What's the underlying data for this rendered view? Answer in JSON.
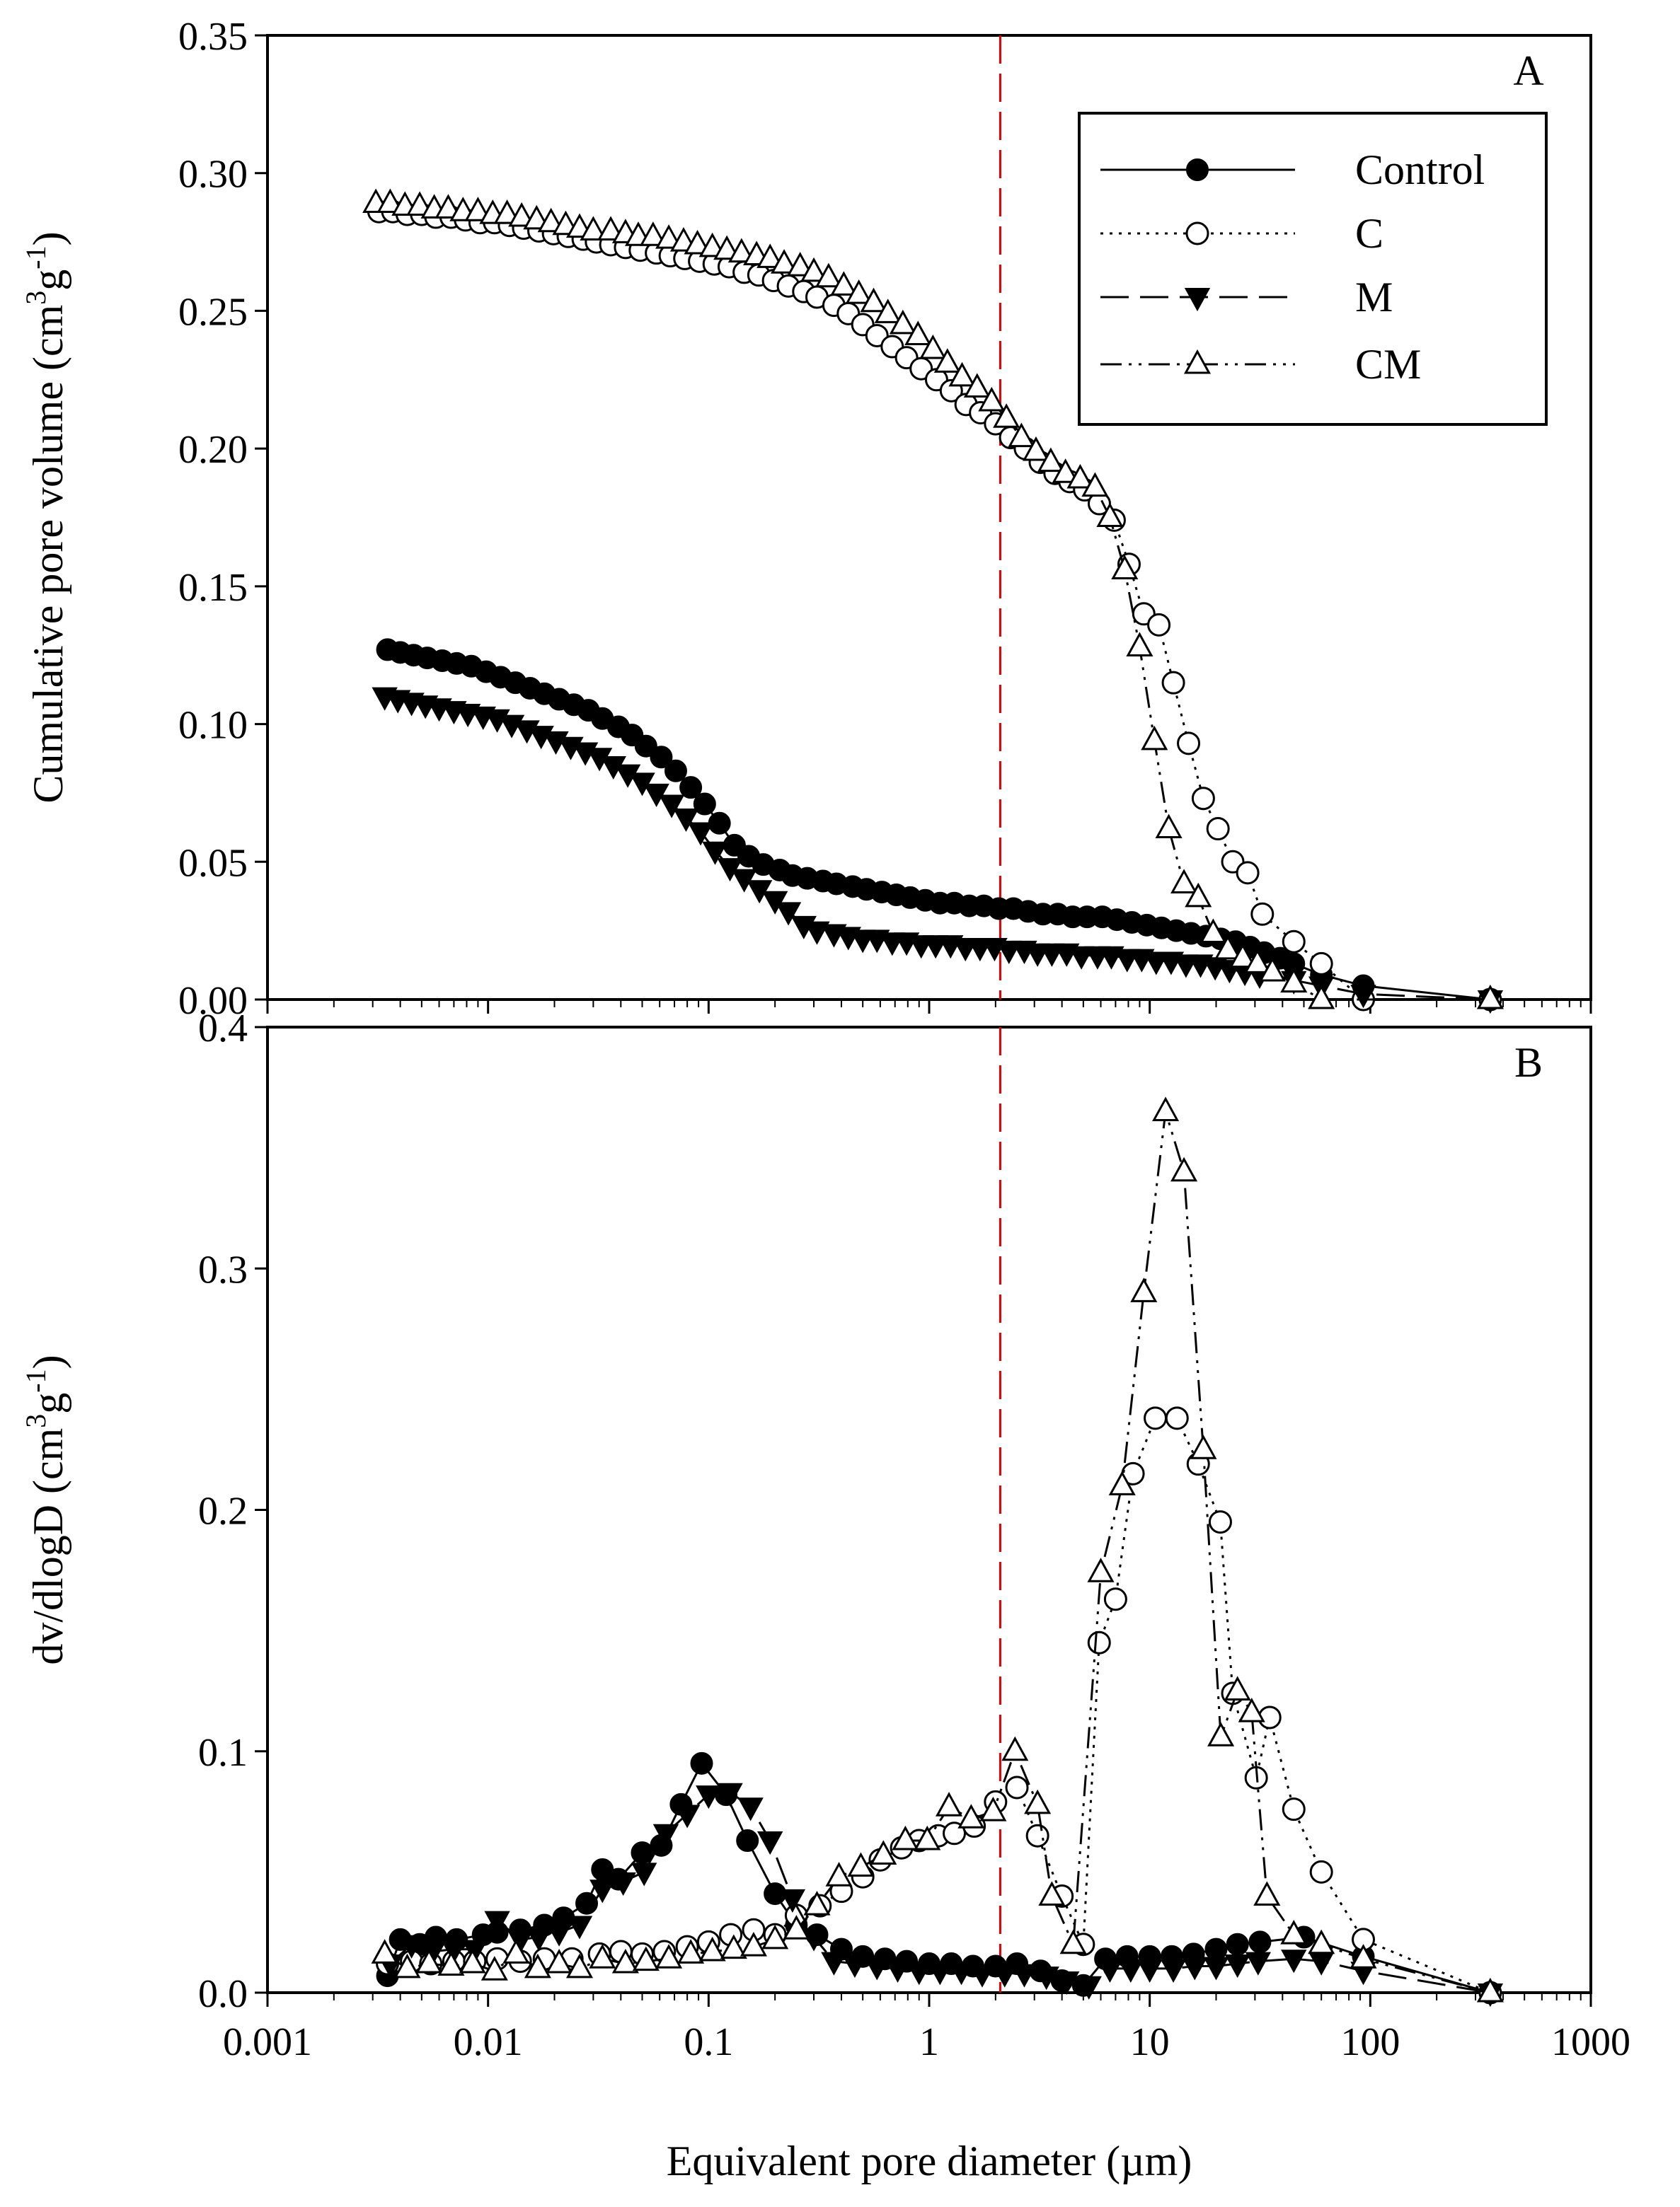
{
  "colors": {
    "axis": "#000000",
    "refline": "#e00000",
    "open_fill": "#ffffff",
    "filled": "#000000"
  },
  "chart_data": [
    {
      "type": "line",
      "panel": "A",
      "ylabel_main": "Cumulative pore volume (cm",
      "ylabel_sup1": "3",
      "ylabel_mid": "g",
      "ylabel_sup2": "-1",
      "ylabel_end": ")",
      "xlabel": "Equivalent pore diameter  (µm)",
      "xscale": "log",
      "xlim": [
        0.001,
        1000
      ],
      "ylim": [
        0,
        0.35
      ],
      "x_ticks": [
        "0.001",
        "0.01",
        "0.1",
        "1",
        "10",
        "100",
        "1000"
      ],
      "y_ticks": [
        "0.00",
        "0.05",
        "0.10",
        "0.15",
        "0.20",
        "0.25",
        "0.30",
        "0.35"
      ],
      "reference_line_x": 2.1,
      "legend": [
        "Control",
        "C",
        "M",
        "CM"
      ],
      "series": [
        {
          "name": "Control",
          "marker": "circle-filled",
          "line": "solid",
          "x": [
            0.0035,
            0.004,
            0.0046,
            0.0053,
            0.0062,
            0.0072,
            0.0084,
            0.0098,
            0.0114,
            0.0133,
            0.0155,
            0.018,
            0.021,
            0.0245,
            0.0285,
            0.033,
            0.039,
            0.045,
            0.052,
            0.061,
            0.071,
            0.083,
            0.096,
            0.112,
            0.131,
            0.152,
            0.177,
            0.21,
            0.24,
            0.28,
            0.33,
            0.38,
            0.45,
            0.52,
            0.61,
            0.71,
            0.82,
            0.96,
            1.12,
            1.3,
            1.52,
            1.77,
            2.07,
            2.41,
            2.81,
            3.28,
            3.83,
            4.47,
            5.2,
            6.1,
            7.1,
            8.3,
            9.7,
            11.3,
            13.2,
            15.4,
            18.0,
            21.0,
            24.5,
            28.5,
            33,
            39,
            45,
            60,
            93,
            350
          ],
          "y": [
            0.127,
            0.126,
            0.125,
            0.124,
            0.123,
            0.122,
            0.121,
            0.119,
            0.117,
            0.115,
            0.113,
            0.111,
            0.109,
            0.107,
            0.105,
            0.102,
            0.099,
            0.096,
            0.092,
            0.088,
            0.083,
            0.077,
            0.071,
            0.064,
            0.056,
            0.052,
            0.049,
            0.047,
            0.045,
            0.044,
            0.043,
            0.042,
            0.041,
            0.04,
            0.039,
            0.038,
            0.037,
            0.036,
            0.035,
            0.035,
            0.034,
            0.034,
            0.033,
            0.033,
            0.032,
            0.031,
            0.031,
            0.03,
            0.03,
            0.03,
            0.029,
            0.028,
            0.027,
            0.026,
            0.025,
            0.024,
            0.023,
            0.022,
            0.021,
            0.019,
            0.017,
            0.015,
            0.013,
            0.009,
            0.005,
            0.0
          ]
        },
        {
          "name": "C",
          "marker": "circle-open",
          "line": "dotted",
          "x": [
            0.0032,
            0.0037,
            0.0043,
            0.005,
            0.0058,
            0.0068,
            0.0079,
            0.0092,
            0.0107,
            0.0125,
            0.0145,
            0.017,
            0.0198,
            0.0231,
            0.027,
            0.031,
            0.036,
            0.042,
            0.049,
            0.058,
            0.067,
            0.078,
            0.091,
            0.106,
            0.124,
            0.145,
            0.169,
            0.197,
            0.23,
            0.27,
            0.31,
            0.37,
            0.43,
            0.5,
            0.58,
            0.68,
            0.79,
            0.92,
            1.08,
            1.26,
            1.47,
            1.71,
            2.0,
            2.34,
            2.73,
            3.19,
            3.72,
            4.34,
            5.07,
            5.91,
            6.9,
            8.06,
            9.4,
            11.0,
            12.8,
            15.0,
            17.5,
            20.4,
            23.8,
            27.8,
            32.4,
            45,
            60,
            93,
            350
          ],
          "y": [
            0.286,
            0.286,
            0.285,
            0.285,
            0.284,
            0.284,
            0.283,
            0.282,
            0.282,
            0.281,
            0.28,
            0.279,
            0.278,
            0.277,
            0.276,
            0.275,
            0.274,
            0.273,
            0.272,
            0.271,
            0.27,
            0.269,
            0.268,
            0.267,
            0.266,
            0.264,
            0.263,
            0.261,
            0.259,
            0.257,
            0.255,
            0.252,
            0.249,
            0.245,
            0.241,
            0.237,
            0.233,
            0.229,
            0.225,
            0.221,
            0.216,
            0.213,
            0.209,
            0.204,
            0.2,
            0.195,
            0.191,
            0.188,
            0.185,
            0.18,
            0.174,
            0.158,
            0.14,
            0.136,
            0.115,
            0.093,
            0.073,
            0.062,
            0.05,
            0.046,
            0.031,
            0.021,
            0.013,
            0.0,
            0.0
          ]
        },
        {
          "name": "M",
          "marker": "triangle-down-filled",
          "line": "dashed",
          "x": [
            0.0034,
            0.0039,
            0.0045,
            0.0052,
            0.006,
            0.007,
            0.0081,
            0.0095,
            0.011,
            0.0128,
            0.015,
            0.0174,
            0.0203,
            0.0237,
            0.0276,
            0.032,
            0.037,
            0.043,
            0.05,
            0.058,
            0.068,
            0.079,
            0.092,
            0.107,
            0.125,
            0.145,
            0.17,
            0.2,
            0.23,
            0.27,
            0.31,
            0.37,
            0.43,
            0.5,
            0.58,
            0.68,
            0.79,
            0.92,
            1.07,
            1.25,
            1.46,
            1.7,
            1.98,
            2.3,
            2.7,
            3.1,
            3.6,
            4.2,
            4.9,
            5.8,
            6.7,
            7.9,
            9.2,
            10.7,
            12.5,
            14.6,
            17,
            19.8,
            23,
            27,
            31.5,
            45,
            60,
            93,
            350
          ],
          "y": [
            0.11,
            0.109,
            0.108,
            0.107,
            0.106,
            0.105,
            0.104,
            0.103,
            0.102,
            0.1,
            0.098,
            0.096,
            0.094,
            0.092,
            0.09,
            0.088,
            0.085,
            0.082,
            0.079,
            0.075,
            0.071,
            0.066,
            0.061,
            0.054,
            0.048,
            0.044,
            0.04,
            0.036,
            0.032,
            0.027,
            0.025,
            0.024,
            0.023,
            0.022,
            0.022,
            0.021,
            0.021,
            0.02,
            0.02,
            0.02,
            0.019,
            0.019,
            0.019,
            0.018,
            0.018,
            0.017,
            0.017,
            0.017,
            0.016,
            0.016,
            0.016,
            0.015,
            0.015,
            0.014,
            0.014,
            0.013,
            0.013,
            0.012,
            0.011,
            0.01,
            0.009,
            0.007,
            0.005,
            0.002,
            0.0
          ]
        },
        {
          "name": "CM",
          "marker": "triangle-up-open",
          "line": "dashdotdot",
          "x": [
            0.0031,
            0.0036,
            0.0042,
            0.0049,
            0.0057,
            0.0066,
            0.0077,
            0.009,
            0.0105,
            0.0122,
            0.0142,
            0.0166,
            0.0193,
            0.0225,
            0.026,
            0.03,
            0.036,
            0.042,
            0.048,
            0.056,
            0.066,
            0.077,
            0.089,
            0.104,
            0.121,
            0.141,
            0.165,
            0.19,
            0.22,
            0.26,
            0.3,
            0.35,
            0.41,
            0.48,
            0.56,
            0.65,
            0.76,
            0.89,
            1.04,
            1.21,
            1.41,
            1.65,
            1.92,
            2.24,
            2.62,
            3.05,
            3.56,
            4.15,
            4.84,
            5.65,
            6.6,
            7.7,
            9.0,
            10.5,
            12.2,
            14.3,
            16.6,
            19.4,
            22.6,
            26.4,
            30.8,
            36,
            45,
            60,
            350
          ],
          "y": [
            0.289,
            0.289,
            0.288,
            0.288,
            0.287,
            0.287,
            0.286,
            0.286,
            0.285,
            0.285,
            0.284,
            0.283,
            0.282,
            0.281,
            0.28,
            0.279,
            0.279,
            0.278,
            0.277,
            0.277,
            0.276,
            0.275,
            0.274,
            0.273,
            0.272,
            0.271,
            0.27,
            0.269,
            0.267,
            0.266,
            0.264,
            0.262,
            0.259,
            0.256,
            0.253,
            0.249,
            0.245,
            0.241,
            0.236,
            0.231,
            0.226,
            0.222,
            0.217,
            0.211,
            0.204,
            0.199,
            0.195,
            0.191,
            0.189,
            0.186,
            0.175,
            0.156,
            0.128,
            0.094,
            0.062,
            0.042,
            0.037,
            0.024,
            0.018,
            0.015,
            0.013,
            0.01,
            0.006,
            0.0,
            0.0
          ]
        }
      ]
    },
    {
      "type": "line",
      "panel": "B",
      "ylabel_main": "dv/dlogD (cm",
      "ylabel_sup1": "3",
      "ylabel_mid": "g",
      "ylabel_sup2": "-1",
      "ylabel_end": ")",
      "xscale": "log",
      "xlim": [
        0.001,
        1000
      ],
      "ylim": [
        0,
        0.4
      ],
      "y_ticks": [
        "0.0",
        "0.1",
        "0.2",
        "0.3",
        "0.4"
      ],
      "reference_line_x": 2.1,
      "series": [
        {
          "name": "Control",
          "marker": "circle-filled",
          "line": "solid",
          "x": [
            0.0035,
            0.004,
            0.0049,
            0.0058,
            0.0072,
            0.0095,
            0.011,
            0.014,
            0.018,
            0.022,
            0.028,
            0.033,
            0.039,
            0.05,
            0.061,
            0.075,
            0.093,
            0.12,
            0.15,
            0.2,
            0.25,
            0.31,
            0.4,
            0.5,
            0.63,
            0.79,
            1.0,
            1.26,
            1.58,
            2.0,
            2.5,
            3.2,
            4.0,
            5.0,
            6.3,
            7.9,
            10,
            12.6,
            15.8,
            20,
            25,
            31.6,
            50,
            93,
            350
          ],
          "y": [
            0.007,
            0.022,
            0.02,
            0.023,
            0.022,
            0.024,
            0.025,
            0.026,
            0.028,
            0.031,
            0.037,
            0.051,
            0.047,
            0.058,
            0.061,
            0.078,
            0.095,
            0.082,
            0.063,
            0.041,
            0.028,
            0.024,
            0.018,
            0.015,
            0.014,
            0.013,
            0.012,
            0.012,
            0.011,
            0.011,
            0.012,
            0.009,
            0.005,
            0.003,
            0.014,
            0.015,
            0.015,
            0.015,
            0.016,
            0.018,
            0.02,
            0.021,
            0.023,
            0.015,
            0.0
          ]
        },
        {
          "name": "C",
          "marker": "circle-open",
          "line": "dotted",
          "x": [
            0.0035,
            0.0045,
            0.0055,
            0.007,
            0.0087,
            0.011,
            0.014,
            0.018,
            0.024,
            0.032,
            0.04,
            0.05,
            0.063,
            0.08,
            0.1,
            0.126,
            0.16,
            0.2,
            0.25,
            0.32,
            0.4,
            0.5,
            0.6,
            0.75,
            0.9,
            1.1,
            1.3,
            1.6,
            2.0,
            2.5,
            3.1,
            4.0,
            5.0,
            5.9,
            7.0,
            8.4,
            10.6,
            13.3,
            16.6,
            20.9,
            23.8,
            30.4,
            35,
            45,
            60,
            93,
            350
          ],
          "y": [
            0.012,
            0.013,
            0.012,
            0.013,
            0.013,
            0.014,
            0.013,
            0.014,
            0.014,
            0.016,
            0.017,
            0.016,
            0.017,
            0.019,
            0.021,
            0.024,
            0.026,
            0.024,
            0.032,
            0.036,
            0.042,
            0.048,
            0.055,
            0.06,
            0.063,
            0.065,
            0.066,
            0.069,
            0.079,
            0.085,
            0.065,
            0.04,
            0.02,
            0.145,
            0.163,
            0.215,
            0.238,
            0.238,
            0.219,
            0.195,
            0.124,
            0.089,
            0.114,
            0.076,
            0.05,
            0.022,
            0.0
          ]
        },
        {
          "name": "M",
          "marker": "triangle-down-filled",
          "line": "dashed",
          "x": [
            0.0036,
            0.0045,
            0.0056,
            0.007,
            0.0087,
            0.011,
            0.014,
            0.017,
            0.021,
            0.026,
            0.033,
            0.041,
            0.051,
            0.064,
            0.08,
            0.1,
            0.125,
            0.155,
            0.19,
            0.24,
            0.3,
            0.37,
            0.46,
            0.58,
            0.72,
            0.9,
            1.12,
            1.4,
            1.74,
            2.2,
            2.7,
            3.4,
            4.2,
            5.3,
            6.6,
            8.2,
            10,
            12.8,
            16,
            20,
            25,
            31,
            45,
            60,
            93,
            350
          ],
          "y": [
            0.012,
            0.02,
            0.017,
            0.018,
            0.018,
            0.03,
            0.022,
            0.023,
            0.025,
            0.028,
            0.043,
            0.046,
            0.05,
            0.066,
            0.074,
            0.082,
            0.083,
            0.077,
            0.063,
            0.039,
            0.023,
            0.013,
            0.012,
            0.011,
            0.01,
            0.009,
            0.009,
            0.009,
            0.008,
            0.008,
            0.008,
            0.007,
            0.005,
            0.003,
            0.01,
            0.01,
            0.01,
            0.01,
            0.011,
            0.011,
            0.012,
            0.013,
            0.014,
            0.013,
            0.009,
            0.0
          ]
        },
        {
          "name": "CM",
          "marker": "triangle-up-open",
          "line": "dashdotdot",
          "x": [
            0.0034,
            0.0043,
            0.0054,
            0.0068,
            0.0085,
            0.0107,
            0.0134,
            0.0168,
            0.021,
            0.026,
            0.033,
            0.042,
            0.052,
            0.066,
            0.083,
            0.104,
            0.13,
            0.16,
            0.2,
            0.25,
            0.31,
            0.39,
            0.49,
            0.62,
            0.78,
            0.98,
            1.23,
            1.55,
            1.95,
            2.45,
            3.1,
            3.6,
            4.5,
            6.0,
            7.5,
            9.4,
            11.8,
            14.3,
            17.5,
            21,
            25,
            29,
            34,
            45,
            60,
            93,
            350
          ],
          "y": [
            0.016,
            0.01,
            0.012,
            0.011,
            0.012,
            0.009,
            0.016,
            0.01,
            0.012,
            0.01,
            0.014,
            0.012,
            0.013,
            0.014,
            0.016,
            0.017,
            0.018,
            0.019,
            0.022,
            0.026,
            0.036,
            0.048,
            0.052,
            0.057,
            0.063,
            0.063,
            0.077,
            0.072,
            0.075,
            0.1,
            0.078,
            0.04,
            0.02,
            0.174,
            0.21,
            0.29,
            0.365,
            0.34,
            0.225,
            0.106,
            0.125,
            0.116,
            0.04,
            0.024,
            0.02,
            0.014,
            0.0
          ]
        }
      ]
    }
  ],
  "panel_labels": [
    "A",
    "B"
  ]
}
